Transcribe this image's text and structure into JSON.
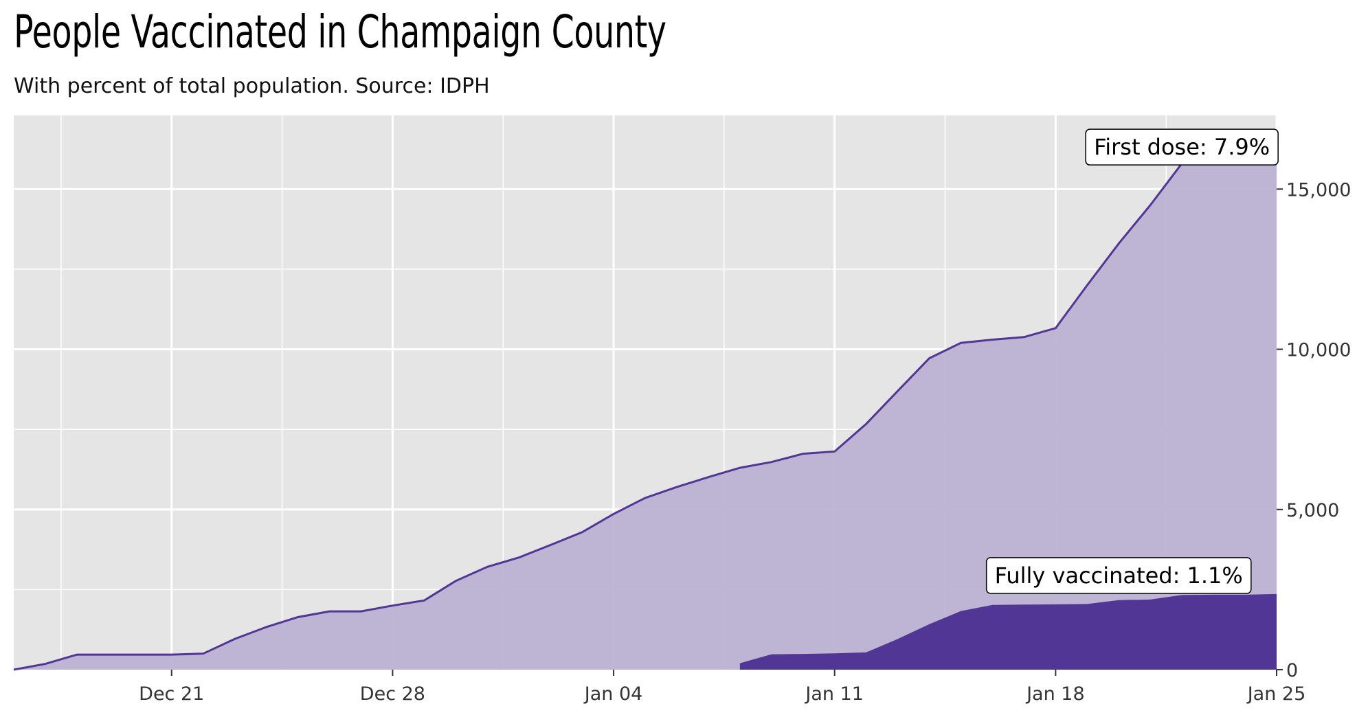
{
  "header": {
    "title": "People Vaccinated in Champaign County",
    "subtitle": "With percent of total population. Source: IDPH"
  },
  "colors": {
    "panel_bg": "#e5e5e5",
    "grid": "#ffffff",
    "first_dose_fill": "#bcb2d3",
    "first_dose_line": "#523695",
    "fully_fill": "#523695"
  },
  "chart_data": {
    "type": "area",
    "title": "People Vaccinated in Champaign County",
    "subtitle": "With percent of total population. Source: IDPH",
    "xlabel": "",
    "ylabel": "",
    "x_range": [
      "2020-12-16",
      "2021-01-25"
    ],
    "ylim": [
      0,
      17300
    ],
    "y_axis_position": "right",
    "grid": true,
    "x_ticks": [
      "2020-12-21",
      "2020-12-28",
      "2021-01-04",
      "2021-01-11",
      "2021-01-18",
      "2021-01-25"
    ],
    "x_tick_labels": [
      "Dec 21",
      "Dec 28",
      "Jan 04",
      "Jan 11",
      "Jan 18",
      "Jan 25"
    ],
    "y_ticks": [
      0,
      5000,
      10000,
      15000
    ],
    "y_tick_labels": [
      "0",
      "5,000",
      "10,000",
      "15,000"
    ],
    "series": [
      {
        "name": "First dose",
        "x": [
          "2020-12-16",
          "2020-12-17",
          "2020-12-18",
          "2020-12-19",
          "2020-12-20",
          "2020-12-21",
          "2020-12-22",
          "2020-12-23",
          "2020-12-24",
          "2020-12-25",
          "2020-12-26",
          "2020-12-27",
          "2020-12-28",
          "2020-12-29",
          "2020-12-30",
          "2020-12-31",
          "2021-01-01",
          "2021-01-02",
          "2021-01-03",
          "2021-01-04",
          "2021-01-05",
          "2021-01-06",
          "2021-01-07",
          "2021-01-08",
          "2021-01-09",
          "2021-01-10",
          "2021-01-11",
          "2021-01-12",
          "2021-01-13",
          "2021-01-14",
          "2021-01-15",
          "2021-01-16",
          "2021-01-17",
          "2021-01-18",
          "2021-01-19",
          "2021-01-20",
          "2021-01-21",
          "2021-01-22",
          "2021-01-23",
          "2021-01-24",
          "2021-01-25"
        ],
        "values": [
          0,
          180,
          470,
          470,
          470,
          470,
          500,
          960,
          1330,
          1640,
          1820,
          1820,
          2000,
          2160,
          2770,
          3210,
          3500,
          3890,
          4290,
          4860,
          5360,
          5700,
          6010,
          6300,
          6480,
          6740,
          6810,
          7670,
          8700,
          9720,
          10200,
          10300,
          10380,
          10660,
          12000,
          13300,
          14500,
          15800,
          16310,
          16330,
          16450
        ]
      },
      {
        "name": "Fully vaccinated",
        "x": [
          "2021-01-08",
          "2021-01-09",
          "2021-01-10",
          "2021-01-11",
          "2021-01-12",
          "2021-01-13",
          "2021-01-14",
          "2021-01-15",
          "2021-01-16",
          "2021-01-17",
          "2021-01-18",
          "2021-01-19",
          "2021-01-20",
          "2021-01-21",
          "2021-01-22",
          "2021-01-23",
          "2021-01-24",
          "2021-01-25"
        ],
        "values": [
          200,
          480,
          490,
          510,
          540,
          960,
          1420,
          1830,
          2020,
          2030,
          2040,
          2050,
          2170,
          2190,
          2330,
          2340,
          2340,
          2360
        ]
      }
    ],
    "annotations": [
      {
        "text": "First dose: 7.9%",
        "x": "2021-01-22",
        "y": 16310
      },
      {
        "text": "Fully vaccinated: 1.1%",
        "x": "2021-01-20",
        "y": 2940
      }
    ]
  }
}
